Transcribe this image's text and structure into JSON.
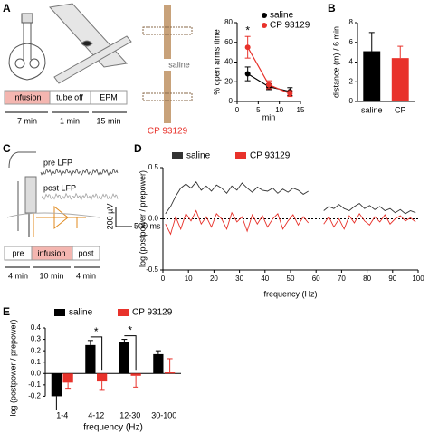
{
  "figure": {
    "panel_labels": [
      "A",
      "B",
      "C",
      "D",
      "E"
    ],
    "a": {
      "timeline": [
        "infusion",
        "tube off",
        "EPM"
      ],
      "durations": [
        "7 min",
        "1 min",
        "15 min"
      ],
      "conditions": [
        "saline",
        "CP 93129"
      ]
    },
    "c": {
      "traces": [
        "pre LFP",
        "post LFP"
      ],
      "scale": [
        "200 µV",
        "500 ms"
      ],
      "timeline": [
        "pre",
        "infusion",
        "post"
      ],
      "durations": [
        "4 min",
        "10 min",
        "4 min"
      ]
    }
  },
  "chart_data": [
    {
      "type": "line",
      "y_label": "% open arms time",
      "x_label": "min",
      "x": [
        2.5,
        7.5,
        12.5
      ],
      "series": [
        {
          "name": "saline",
          "color": "#000000",
          "values": [
            28,
            15,
            10
          ],
          "errors": [
            7,
            3,
            4
          ]
        },
        {
          "name": "CP 93129",
          "color": "#e8322b",
          "values": [
            55,
            17,
            8
          ],
          "errors": [
            11,
            4,
            3
          ]
        }
      ],
      "xlim": [
        0,
        15
      ],
      "xticks": [
        0,
        5,
        10,
        15
      ],
      "ylim": [
        0,
        80
      ],
      "yticks": [
        0,
        20,
        40,
        60,
        80
      ],
      "annotations": [
        "*"
      ],
      "markers": true
    },
    {
      "type": "bar",
      "y_label": "distance (m) / 6 min",
      "categories": [
        "saline",
        "CP"
      ],
      "values": [
        5.1,
        4.4
      ],
      "errors": [
        1.9,
        1.2
      ],
      "colors": [
        "#000000",
        "#e8322b"
      ],
      "ylim": [
        0,
        8
      ],
      "yticks": [
        0,
        2,
        4,
        6,
        8
      ]
    },
    {
      "type": "line",
      "y_label": "log (postpower / prepower)",
      "x_label": "frequency (Hz)",
      "x": [
        1,
        3,
        5,
        7,
        9,
        11,
        13,
        15,
        17,
        19,
        21,
        23,
        25,
        27,
        29,
        31,
        33,
        35,
        37,
        39,
        41,
        43,
        45,
        47,
        49,
        51,
        53,
        55,
        57,
        59,
        61,
        63,
        65,
        67,
        69,
        71,
        73,
        75,
        77,
        79,
        81,
        83,
        85,
        87,
        89,
        91,
        93,
        95,
        97,
        99
      ],
      "series": [
        {
          "name": "saline",
          "color": "#333333",
          "values": [
            0.05,
            0.12,
            0.22,
            0.3,
            0.34,
            0.3,
            0.36,
            0.28,
            0.32,
            0.27,
            0.33,
            0.3,
            0.25,
            0.32,
            0.28,
            0.35,
            0.3,
            0.26,
            0.31,
            0.28,
            0.27,
            0.3,
            0.25,
            0.29,
            0.26,
            0.3,
            0.28,
            0.24,
            0.27,
            null,
            null,
            0.08,
            0.12,
            0.1,
            0.14,
            0.1,
            0.08,
            0.12,
            0.15,
            0.1,
            0.13,
            0.09,
            0.12,
            0.08,
            0.1,
            0.06,
            0.09,
            0.05,
            0.08,
            0.06
          ]
        },
        {
          "name": "CP 93129",
          "color": "#e8322b",
          "values": [
            -0.05,
            -0.15,
            0.02,
            -0.1,
            0.05,
            -0.02,
            0.08,
            -0.05,
            0.02,
            -0.08,
            0.05,
            0.0,
            -0.1,
            0.06,
            -0.03,
            0.02,
            -0.12,
            0.04,
            -0.05,
            0.03,
            -0.08,
            0.0,
            0.05,
            -0.1,
            -0.02,
            0.04,
            -0.06,
            0.02,
            -0.04,
            null,
            null,
            -0.05,
            0.02,
            -0.08,
            0.0,
            -0.1,
            0.03,
            -0.04,
            0.05,
            -0.02,
            -0.06,
            0.02,
            -0.03,
            0.04,
            -0.05,
            0.0,
            0.03,
            -0.02,
            0.01,
            -0.03
          ]
        }
      ],
      "xlim": [
        0,
        100
      ],
      "xticks": [
        0,
        10,
        20,
        30,
        40,
        50,
        60,
        70,
        80,
        90,
        100
      ],
      "ylim": [
        -0.5,
        0.5
      ],
      "yticks": [
        {
          "value": -0.5,
          "label": "-0.5"
        },
        {
          "value": 0,
          "label": "0.0"
        },
        {
          "value": 0.5,
          "label": "0.5"
        }
      ],
      "zero_line": true,
      "legend": "top"
    },
    {
      "type": "groupbar",
      "y_label": "log (postpower / prepower)",
      "x_label": "frequency (Hz)",
      "categories": [
        "1-4",
        "4-12",
        "12-30",
        "30-100"
      ],
      "series": [
        {
          "name": "saline",
          "color": "#000000",
          "values": [
            -0.2,
            0.25,
            0.28,
            0.17
          ],
          "errors": [
            0.12,
            0.04,
            0.02,
            0.03
          ]
        },
        {
          "name": "CP 93129",
          "color": "#e8322b",
          "values": [
            -0.08,
            -0.07,
            -0.02,
            0.01
          ],
          "errors": [
            0.05,
            0.07,
            0.1,
            0.12
          ]
        }
      ],
      "ylim": [
        -0.3,
        0.4
      ],
      "yticks": [
        {
          "value": -0.2,
          "label": "-0.2"
        },
        {
          "value": -0.1,
          "label": "-0.1"
        },
        {
          "value": 0,
          "label": "0.0"
        },
        {
          "value": 0.1,
          "label": "0.1"
        },
        {
          "value": 0.2,
          "label": "0.2"
        },
        {
          "value": 0.3,
          "label": "0.3"
        },
        {
          "value": 0.4,
          "label": "0.4"
        }
      ],
      "annotations": [
        "*",
        "*"
      ],
      "legend": "top"
    }
  ]
}
